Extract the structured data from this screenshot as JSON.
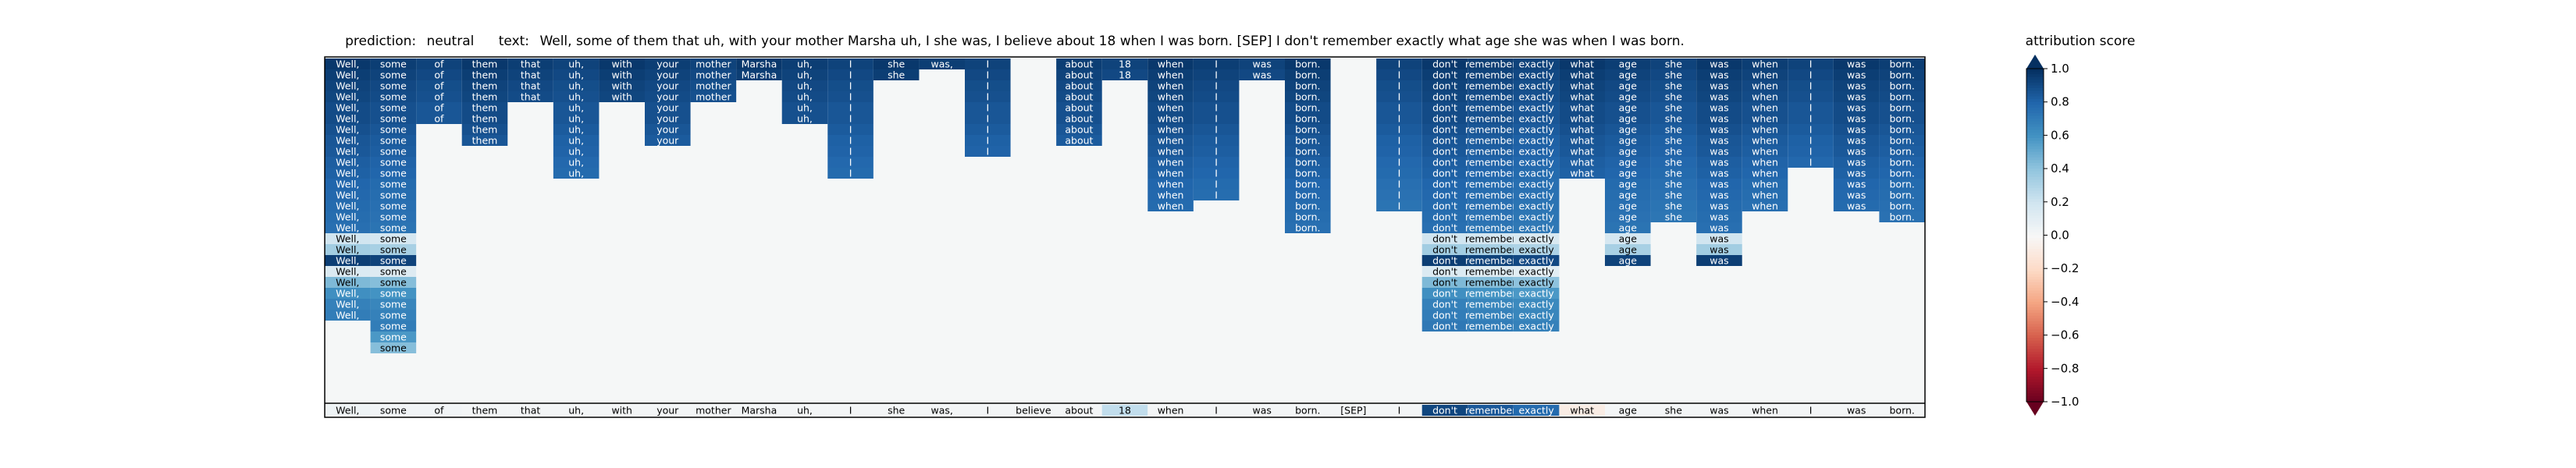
{
  "header": {
    "prediction_label": "prediction:",
    "prediction_value": "neutral",
    "text_label": "text:",
    "text_value": "Well, some of them that uh, with your mother Marsha uh, I she was, I believe about 18 when I was born. [SEP] I don't remember exactly what age she was when I was born.",
    "colorbar_title": "attribution score"
  },
  "chart_data": {
    "type": "heatmap",
    "title": "prediction:  neutral     text:  Well, some of them that uh, with your mother Marsha uh, I she was, I believe about 18 when I was born. [SEP] I don't remember exactly what age she was when I was born.",
    "tokens": [
      "Well,",
      "some",
      "of",
      "them",
      "that",
      "uh,",
      "with",
      "your",
      "mother",
      "Marsha",
      "uh,",
      "I",
      "she",
      "was,",
      "I",
      "believe",
      "about",
      "18",
      "when",
      "I",
      "was",
      "born.",
      "[SEP]",
      "I",
      "don't",
      "remember",
      "exactly",
      "what",
      "age",
      "she",
      "was",
      "when",
      "I",
      "was",
      "born."
    ],
    "column_depth": [
      24,
      27,
      6,
      8,
      4,
      11,
      4,
      8,
      4,
      2,
      6,
      11,
      2,
      1,
      9,
      0,
      8,
      2,
      14,
      13,
      2,
      16,
      0,
      14,
      25,
      25,
      25,
      11,
      19,
      15,
      19,
      14,
      10,
      14,
      15
    ],
    "intensity": [
      [
        0.97,
        0.97,
        0.97,
        0.97,
        0.97,
        0.97,
        0.97,
        0.97,
        0.97,
        0.97,
        0.97,
        0.97,
        0.97,
        0.97,
        0.97,
        0.97,
        0.97,
        0.97,
        0.97,
        0.97,
        0.97,
        0.97,
        0.97,
        0.97,
        0.97,
        0.97,
        0.97,
        0.97,
        0.97,
        0.97,
        0.97,
        0.97
      ],
      [
        0.95,
        0.95,
        0.95,
        0.95,
        0.95,
        0.95,
        0.95,
        0.95,
        0.95,
        0.95,
        0.95,
        0.95,
        0.95,
        0.95,
        0.95,
        0.95,
        0.95,
        0.95,
        0.95,
        0.95,
        0.95,
        0.95,
        0.95,
        0.95,
        0.95,
        0.95,
        0.95,
        0.95,
        0.95,
        0.95,
        0.95
      ],
      [
        0.93,
        0.93,
        0.93,
        0.93,
        0.93,
        0.93,
        0.93,
        0.93,
        0.93,
        0.93,
        0.93,
        0.93,
        0.93,
        0.93,
        0.93,
        0.93,
        0.93,
        0.93,
        0.93,
        0.93,
        0.93,
        0.93,
        0.93,
        0.93,
        0.93,
        0.93,
        0.93,
        0.93,
        0.93,
        0.93
      ],
      [
        0.92,
        0.92,
        0.92,
        0.92,
        0.92,
        0.92,
        0.92,
        0.92,
        0.92,
        0.92,
        0.92,
        0.92,
        0.92,
        0.92,
        0.92,
        0.92,
        0.92,
        0.92,
        0.92,
        0.92,
        0.92,
        0.92,
        0.92,
        0.92,
        0.92,
        0.92,
        0.92,
        0.92,
        0.92
      ],
      [
        0.9,
        0.9,
        0.9,
        0.9,
        0.9,
        0.9,
        0.9,
        0.9,
        0.9,
        0.9,
        0.9,
        0.9,
        0.9,
        0.9,
        0.9,
        0.9,
        0.9,
        0.9,
        0.9,
        0.9,
        0.9,
        0.9,
        0.9,
        0.9,
        0.9,
        0.9,
        0.9,
        0.9
      ],
      [
        0.9,
        0.9,
        0.9,
        0.9,
        0.9,
        0.9,
        0.9,
        0.9,
        0.9,
        0.9,
        0.9,
        0.9,
        0.9,
        0.9,
        0.9,
        0.9,
        0.9,
        0.9,
        0.9,
        0.9,
        0.9,
        0.9,
        0.9,
        0.9,
        0.9,
        0.9,
        0.9
      ],
      [
        0.88,
        0.88,
        0.88,
        0.88,
        0.88,
        0.88,
        0.88,
        0.88,
        0.88,
        0.88,
        0.88,
        0.88,
        0.88,
        0.88,
        0.88,
        0.88,
        0.88,
        0.88,
        0.88,
        0.88,
        0.88,
        0.88,
        0.88,
        0.88,
        0.88,
        0.88
      ],
      [
        0.86,
        0.86,
        0.86,
        0.86,
        0.86,
        0.86,
        0.86,
        0.86,
        0.86,
        0.86,
        0.86,
        0.86,
        0.86,
        0.86,
        0.86,
        0.86,
        0.86,
        0.86,
        0.86,
        0.86,
        0.86,
        0.86,
        0.86,
        0.86,
        0.86
      ],
      [
        0.85,
        0.85,
        0.85,
        0.85,
        0.85,
        0.85,
        0.85,
        0.85,
        0.85,
        0.85,
        0.85,
        0.85,
        0.85,
        0.85,
        0.85,
        0.85,
        0.85,
        0.85,
        0.85,
        0.85,
        0.85,
        0.85,
        0.85,
        0.85
      ],
      [
        0.83,
        0.83,
        0.83,
        0.83,
        0.83,
        0.83,
        0.83,
        0.83,
        0.83,
        0.83,
        0.83,
        0.83,
        0.83,
        0.83,
        0.83,
        0.83,
        0.83,
        0.83,
        0.83,
        0.83,
        0.83,
        0.83,
        0.83
      ],
      [
        0.82,
        0.82,
        0.82,
        0.82,
        0.82,
        0.82,
        0.82,
        0.82,
        0.82,
        0.82,
        0.82,
        0.82,
        0.82,
        0.82,
        0.82,
        0.82,
        0.82,
        0.82,
        0.82,
        0.82,
        0.82,
        0.82
      ],
      [
        0.8,
        0.8,
        0.8,
        0.8,
        0.8,
        0.8,
        0.8,
        0.8,
        0.8,
        0.8,
        0.8,
        0.8,
        0.8,
        0.8,
        0.8,
        0.8,
        0.8,
        0.8,
        0.8,
        0.8,
        0.8
      ],
      [
        0.79,
        0.79,
        0.79,
        0.79,
        0.79,
        0.79,
        0.79,
        0.79,
        0.79,
        0.79,
        0.79,
        0.79,
        0.79,
        0.79,
        0.79,
        0.79,
        0.79,
        0.79,
        0.79,
        0.79
      ],
      [
        0.78,
        0.78,
        0.78,
        0.78,
        0.78,
        0.78,
        0.78,
        0.78,
        0.78,
        0.78,
        0.78,
        0.78,
        0.78,
        0.78,
        0.78,
        0.78,
        0.78,
        0.78,
        0.78
      ],
      [
        0.77,
        0.77,
        0.77,
        0.77,
        0.77,
        0.77,
        0.77,
        0.77,
        0.77,
        0.77,
        0.77,
        0.77,
        0.77,
        0.77,
        0.77,
        0.77,
        0.77,
        0.77
      ],
      [
        0.76,
        0.76,
        0.76,
        0.76,
        0.76,
        0.76,
        0.76,
        0.76,
        0.76,
        0.76,
        0.76,
        0.76,
        0.76,
        0.76,
        0.76,
        0.76,
        0.76
      ],
      [
        0.2,
        0.2,
        0.2,
        0.2,
        0.2,
        0.2,
        0.2,
        0.2,
        0.2,
        0.2,
        0.2,
        0.2,
        0.2,
        0.2,
        0.2,
        0.2
      ],
      [
        0.35,
        0.35,
        0.35,
        0.35,
        0.35,
        0.35,
        0.35,
        0.35,
        0.35,
        0.35,
        0.35,
        0.35,
        0.35,
        0.35,
        0.35
      ],
      [
        0.95,
        0.95,
        0.95,
        0.95,
        0.95,
        0.95,
        0.95,
        0.95,
        0.95,
        0.95,
        0.95,
        0.95,
        0.95,
        0.95
      ],
      [
        0.15,
        0.15,
        0.15,
        0.15,
        0.15,
        0.15,
        0.15,
        0.15,
        0.15,
        0.15,
        0.15,
        0.15,
        0.15
      ],
      [
        0.45,
        0.45,
        0.45,
        0.45,
        0.45,
        0.45,
        0.45,
        0.45,
        0.45,
        0.45,
        0.45,
        0.45
      ],
      [
        0.62,
        0.62,
        0.62,
        0.62,
        0.62,
        0.62,
        0.62,
        0.62,
        0.62,
        0.62,
        0.62
      ],
      [
        0.68,
        0.68,
        0.68,
        0.68,
        0.68,
        0.68,
        0.68,
        0.68,
        0.68,
        0.68
      ],
      [
        0.7,
        0.7,
        0.7,
        0.7,
        0.7,
        0.7,
        0.7,
        0.7,
        0.7
      ],
      [
        0.72,
        0.72,
        0.72,
        0.72,
        0.72,
        0.72,
        0.72,
        0.72
      ],
      [
        0.6,
        0.6,
        0.6,
        0.6,
        0.6,
        0.6,
        0.6
      ],
      [
        0.45,
        0.45,
        0.45,
        0.45,
        0.45,
        0.45
      ],
      [
        0.1,
        0.1,
        0.1,
        0.1,
        0.1
      ]
    ],
    "bottom_row_values": [
      0.05,
      0.03,
      0.03,
      0.02,
      0.02,
      0.02,
      0.02,
      0.02,
      0.02,
      0.02,
      0.02,
      0.02,
      0.02,
      0.02,
      0.02,
      0.02,
      0.02,
      0.25,
      0.02,
      0.02,
      0.02,
      0.02,
      0.02,
      0.02,
      0.92,
      0.85,
      0.78,
      -0.08,
      0.02,
      0.02,
      0.02,
      0.02,
      0.02,
      0.02,
      0.02
    ],
    "colorbar": {
      "colormap": "RdBu",
      "range": [
        -1.0,
        1.0
      ],
      "ticks": [
        1.0,
        0.8,
        0.6,
        0.4,
        0.2,
        0.0,
        -0.2,
        -0.4,
        -0.6,
        -0.8,
        -1.0
      ],
      "tick_labels": [
        "1.0",
        "0.8",
        "0.6",
        "0.4",
        "0.2",
        "0.0",
        "−0.2",
        "−0.4",
        "−0.6",
        "−0.8",
        "−1.0"
      ]
    },
    "empty_color": "#f5f7f7"
  }
}
